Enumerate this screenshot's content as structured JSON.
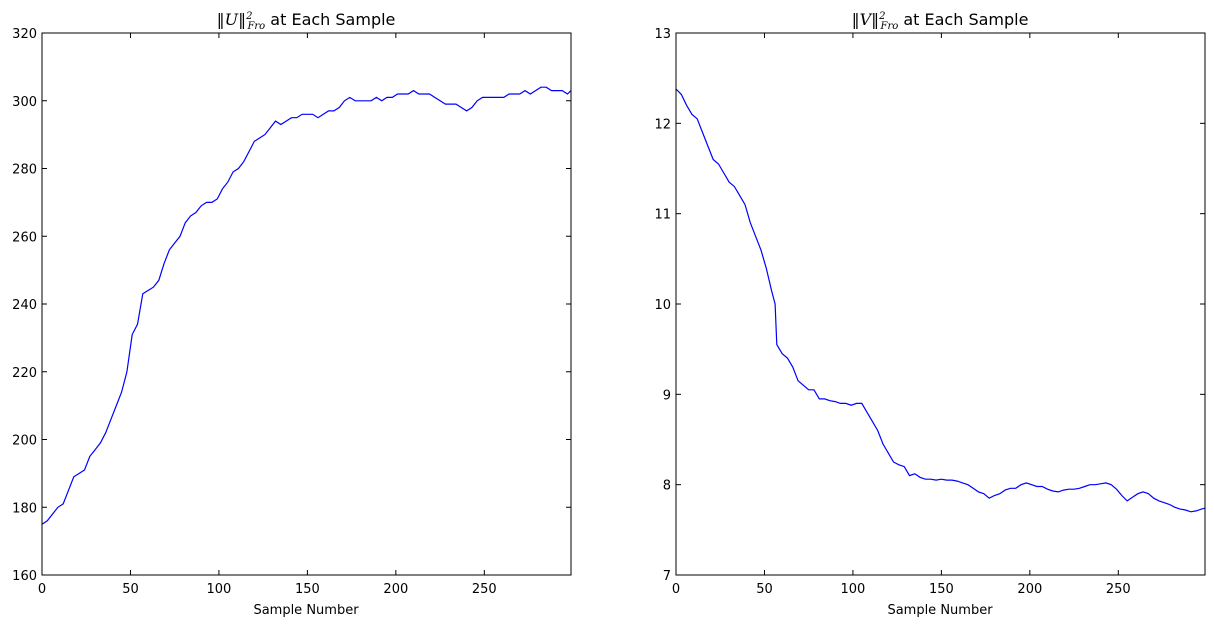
{
  "chart_data": [
    {
      "type": "line",
      "title": "‖U‖²Fro at Each Sample",
      "title_parts": {
        "norm": "‖U‖",
        "sup": "2",
        "sub": "Fro",
        "rest": " at Each Sample"
      },
      "xlabel": "Sample Number",
      "ylabel": "",
      "xlim": [
        0,
        299
      ],
      "ylim": [
        160,
        320
      ],
      "xticks": [
        0,
        50,
        100,
        150,
        200,
        250
      ],
      "yticks": [
        160,
        180,
        200,
        220,
        240,
        260,
        280,
        300,
        320
      ],
      "grid": false,
      "line_color": "#0000ff",
      "series": [
        {
          "x": [
            0,
            3,
            6,
            9,
            12,
            15,
            18,
            21,
            24,
            27,
            30,
            33,
            36,
            39,
            42,
            45,
            48,
            51,
            54,
            57,
            60,
            63,
            66,
            69,
            72,
            75,
            78,
            81,
            84,
            87,
            90,
            93,
            96,
            99,
            102,
            105,
            108,
            111,
            114,
            117,
            120,
            123,
            126,
            129,
            132,
            135,
            138,
            141,
            144,
            147,
            150,
            153,
            156,
            159,
            162,
            165,
            168,
            171,
            174,
            177,
            180,
            183,
            186,
            189,
            192,
            195,
            198,
            201,
            204,
            207,
            210,
            213,
            216,
            219,
            222,
            225,
            228,
            231,
            234,
            237,
            240,
            243,
            246,
            249,
            252,
            255,
            258,
            261,
            264,
            267,
            270,
            273,
            276,
            279,
            282,
            285,
            288,
            291,
            294,
            297,
            299
          ],
          "values": [
            175,
            176,
            178,
            180,
            181,
            185,
            189,
            190,
            191,
            195,
            197,
            199,
            202,
            206,
            210,
            214,
            220,
            231,
            234,
            243,
            244,
            245,
            247,
            252,
            256,
            258,
            260,
            264,
            266,
            267,
            269,
            270,
            270,
            271,
            274,
            276,
            279,
            280,
            282,
            285,
            288,
            289,
            290,
            292,
            294,
            293,
            294,
            295,
            295,
            296,
            296,
            296,
            295,
            296,
            297,
            297,
            298,
            300,
            301,
            300,
            300,
            300,
            300,
            301,
            300,
            301,
            301,
            302,
            302,
            302,
            303,
            302,
            302,
            302,
            301,
            300,
            299,
            299,
            299,
            298,
            297,
            298,
            300,
            301,
            301,
            301,
            301,
            301,
            302,
            302,
            302,
            303,
            302,
            303,
            304,
            304,
            303,
            303,
            303,
            302,
            303
          ]
        }
      ]
    },
    {
      "type": "line",
      "title": "‖V‖²Fro at Each Sample",
      "title_parts": {
        "norm": "‖V‖",
        "sup": "2",
        "sub": "Fro",
        "rest": " at Each Sample"
      },
      "xlabel": "Sample Number",
      "ylabel": "",
      "xlim": [
        0,
        299
      ],
      "ylim": [
        7,
        13
      ],
      "xticks": [
        0,
        50,
        100,
        150,
        200,
        250
      ],
      "yticks": [
        7,
        8,
        9,
        10,
        11,
        12,
        13
      ],
      "grid": false,
      "line_color": "#0000ff",
      "series": [
        {
          "x": [
            0,
            3,
            6,
            9,
            12,
            15,
            18,
            21,
            24,
            27,
            30,
            33,
            36,
            39,
            42,
            45,
            48,
            51,
            54,
            56,
            57,
            60,
            63,
            66,
            69,
            72,
            75,
            78,
            81,
            84,
            87,
            90,
            93,
            96,
            99,
            102,
            105,
            108,
            111,
            114,
            117,
            120,
            123,
            126,
            129,
            132,
            135,
            138,
            141,
            144,
            147,
            150,
            153,
            156,
            159,
            162,
            165,
            168,
            171,
            174,
            177,
            180,
            183,
            186,
            189,
            192,
            195,
            198,
            201,
            204,
            207,
            210,
            213,
            216,
            219,
            222,
            225,
            228,
            231,
            234,
            237,
            240,
            243,
            246,
            249,
            252,
            255,
            258,
            261,
            264,
            267,
            270,
            273,
            276,
            279,
            282,
            285,
            288,
            291,
            294,
            297,
            299
          ],
          "values": [
            12.38,
            12.32,
            12.2,
            12.1,
            12.05,
            11.9,
            11.75,
            11.6,
            11.55,
            11.45,
            11.35,
            11.3,
            11.2,
            11.1,
            10.9,
            10.75,
            10.6,
            10.4,
            10.15,
            10.0,
            9.55,
            9.45,
            9.4,
            9.3,
            9.15,
            9.1,
            9.05,
            9.05,
            8.95,
            8.95,
            8.93,
            8.92,
            8.9,
            8.9,
            8.88,
            8.9,
            8.9,
            8.8,
            8.7,
            8.6,
            8.45,
            8.35,
            8.25,
            8.22,
            8.2,
            8.1,
            8.12,
            8.08,
            8.06,
            8.06,
            8.05,
            8.06,
            8.05,
            8.05,
            8.04,
            8.02,
            8.0,
            7.96,
            7.92,
            7.9,
            7.85,
            7.88,
            7.9,
            7.94,
            7.96,
            7.96,
            8.0,
            8.02,
            8.0,
            7.98,
            7.98,
            7.95,
            7.93,
            7.92,
            7.94,
            7.95,
            7.95,
            7.96,
            7.98,
            8.0,
            8.0,
            8.01,
            8.02,
            8.0,
            7.95,
            7.88,
            7.82,
            7.86,
            7.9,
            7.92,
            7.9,
            7.85,
            7.82,
            7.8,
            7.78,
            7.75,
            7.73,
            7.72,
            7.7,
            7.71,
            7.73,
            7.74
          ]
        }
      ]
    }
  ]
}
